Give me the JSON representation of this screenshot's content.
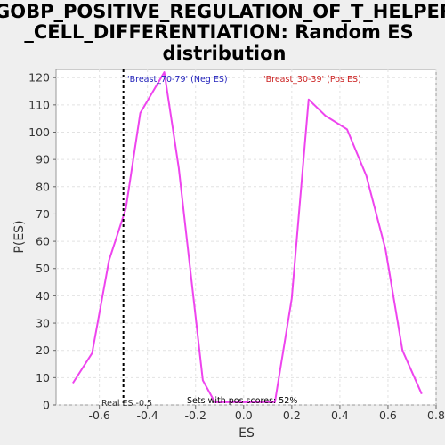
{
  "chart_data": {
    "type": "line",
    "title_lines": [
      "GOBP_POSITIVE_REGULATION_OF_T_HELPER",
      "_CELL_DIFFERENTIATION: Random ES",
      "distribution"
    ],
    "xlabel": "ES",
    "ylabel": "P(ES)",
    "xlim": [
      -0.78,
      0.8
    ],
    "ylim": [
      0,
      123
    ],
    "x_ticks": [
      -0.6,
      -0.4,
      -0.2,
      0.0,
      0.2,
      0.4,
      0.6,
      0.8
    ],
    "x_tick_labels": [
      "-0.6",
      "-0.4",
      "-0.2",
      "0.0",
      "0.2",
      "0.4",
      "0.6",
      "0.8"
    ],
    "y_ticks": [
      0,
      10,
      20,
      30,
      40,
      50,
      60,
      70,
      80,
      90,
      100,
      110,
      120
    ],
    "y_tick_labels": [
      "0",
      "10",
      "20",
      "30",
      "40",
      "50",
      "60",
      "70",
      "80",
      "90",
      "100",
      "110",
      "120"
    ],
    "grid": true,
    "series": [
      {
        "color": "#ee44ee",
        "x": [
          -0.71,
          -0.63,
          -0.56,
          -0.49,
          -0.43,
          -0.33,
          -0.27,
          -0.17,
          -0.12,
          0.13,
          0.2,
          0.27,
          0.34,
          0.43,
          0.51,
          0.59,
          0.66,
          0.74
        ],
        "y": [
          8,
          19,
          53,
          72,
          107,
          122,
          87,
          9,
          1,
          1,
          39,
          112,
          106,
          101,
          84,
          57,
          20,
          4
        ]
      }
    ],
    "vline": {
      "x": -0.5,
      "style": "dotted",
      "color": "#000000"
    },
    "annotations": {
      "neg": {
        "text": "'Breast_70-79' (Neg ES)",
        "color": "#2222bb"
      },
      "pos": {
        "text": "'Breast_30-39' (Pos ES)",
        "color": "#cc2222"
      },
      "real_es": {
        "text": "Real ES -0.5",
        "color": "#333333"
      },
      "pos_scores": {
        "text": "Sets with pos scores: 52%",
        "color": "#000000"
      }
    }
  }
}
